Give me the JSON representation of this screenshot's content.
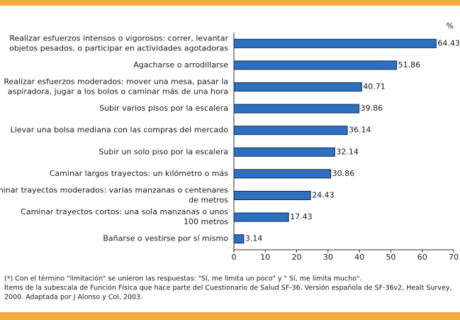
{
  "chart_data": {
    "type": "bar",
    "orientation": "horizontal",
    "unit_label": "%",
    "categories": [
      [
        "Realizar esfuerzos intensos o vigorosos: correr, levantar",
        "objetos pesados, o participar en actividades agotadoras"
      ],
      [
        "Agacharse o arrodillarse"
      ],
      [
        "Realizar esfuerzos moderados: mover una mesa, pasar la",
        "aspiradora, jugar a los bolos o caminar más de una hora"
      ],
      [
        "Subir varios pisos por la escalera"
      ],
      [
        "Llevar una bolsa mediana con las compras del mercado"
      ],
      [
        "Subir un solo piso por la escalera"
      ],
      [
        "Caminar largos trayectos: un kilómetro o más"
      ],
      [
        "Caminar trayectos moderados: varias manzanas o centenares",
        "de metros"
      ],
      [
        "Caminar trayectos cortos: una sola manzanas o unos",
        "100 metros"
      ],
      [
        "Bañarse o vestirse por sí mismo"
      ]
    ],
    "values": [
      64.43,
      51.86,
      40.71,
      39.86,
      36.14,
      32.14,
      30.86,
      24.43,
      17.43,
      3.14
    ],
    "color": "#2e6fbf",
    "xlim": [
      0,
      70
    ],
    "xticks": [
      0,
      10,
      20,
      30,
      40,
      50,
      60,
      70
    ],
    "notes": [
      "(*) Con el término \"limitación\" se unieron las respuestas: \"Sí, me limita un poco\" y \" Sí, me limita mucho\".",
      "Ítems de la subescala de Función Física que hace parte del Cuestionario de Salud SF-36. Versión española de SF-36v2, Healt Survey,",
      "2000. Adaptada por J Alonso y Col, 2003."
    ],
    "frame_color": "#f5a940"
  }
}
